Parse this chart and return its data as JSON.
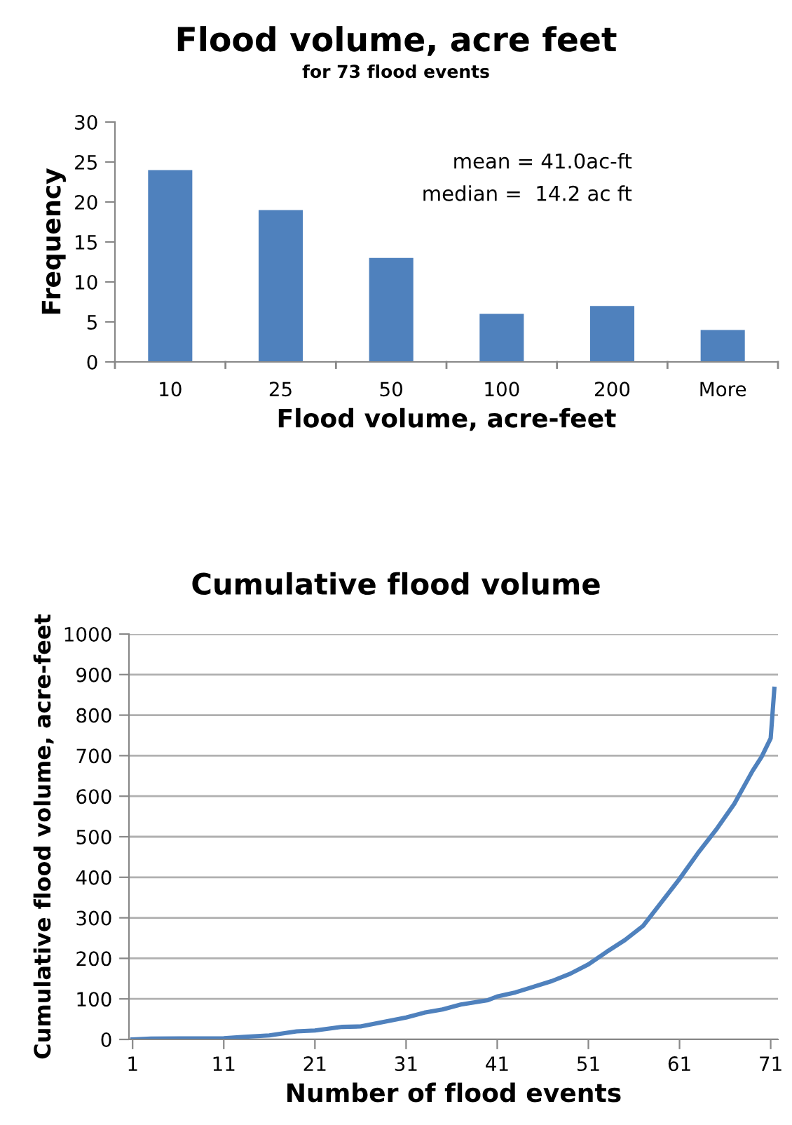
{
  "chart_data": [
    {
      "type": "bar",
      "title": "Flood volume, acre feet",
      "subtitle": "for 73 flood events",
      "xlabel": "Flood volume, acre-feet",
      "ylabel": "Frequency",
      "categories": [
        "10",
        "25",
        "50",
        "100",
        "200",
        "More"
      ],
      "values": [
        24,
        19,
        13,
        6,
        7,
        4
      ],
      "color": "#4f81bd",
      "ylim": [
        0,
        30
      ],
      "yticks": [
        0,
        5,
        10,
        15,
        20,
        25,
        30
      ],
      "grid": false,
      "legend": false,
      "annotations": [
        "mean = 41.0ac-ft",
        "median =  14.2 ac ft"
      ]
    },
    {
      "type": "line",
      "title": "Cumulative flood volume",
      "xlabel": "Number of flood events",
      "ylabel": "Cumulative flood volume, acre-feet",
      "series": [
        {
          "color": "#4f81bd",
          "x": [
            1,
            3,
            11,
            13,
            16,
            19,
            21,
            24,
            26,
            31,
            33,
            35,
            37,
            40,
            41,
            43,
            45,
            47,
            49,
            51,
            53,
            55,
            57,
            59,
            61,
            63,
            65,
            67,
            69,
            70,
            71,
            71.4
          ],
          "values": [
            0,
            2,
            3,
            6,
            10,
            20,
            22,
            31,
            32,
            54,
            66,
            74,
            86,
            97,
            106,
            116,
            130,
            144,
            162,
            185,
            216,
            245,
            280,
            338,
            396,
            459,
            517,
            581,
            662,
            697,
            743,
            865
          ]
        }
      ],
      "xlim": [
        0.6,
        71.8
      ],
      "xticks": [
        1,
        11,
        21,
        31,
        41,
        51,
        61,
        71
      ],
      "ylim": [
        0,
        1000
      ],
      "yticks": [
        0,
        100,
        200,
        300,
        400,
        500,
        600,
        700,
        800,
        900,
        1000
      ],
      "grid": "y",
      "legend": false,
      "marker": "none",
      "line_style": "solid"
    }
  ]
}
